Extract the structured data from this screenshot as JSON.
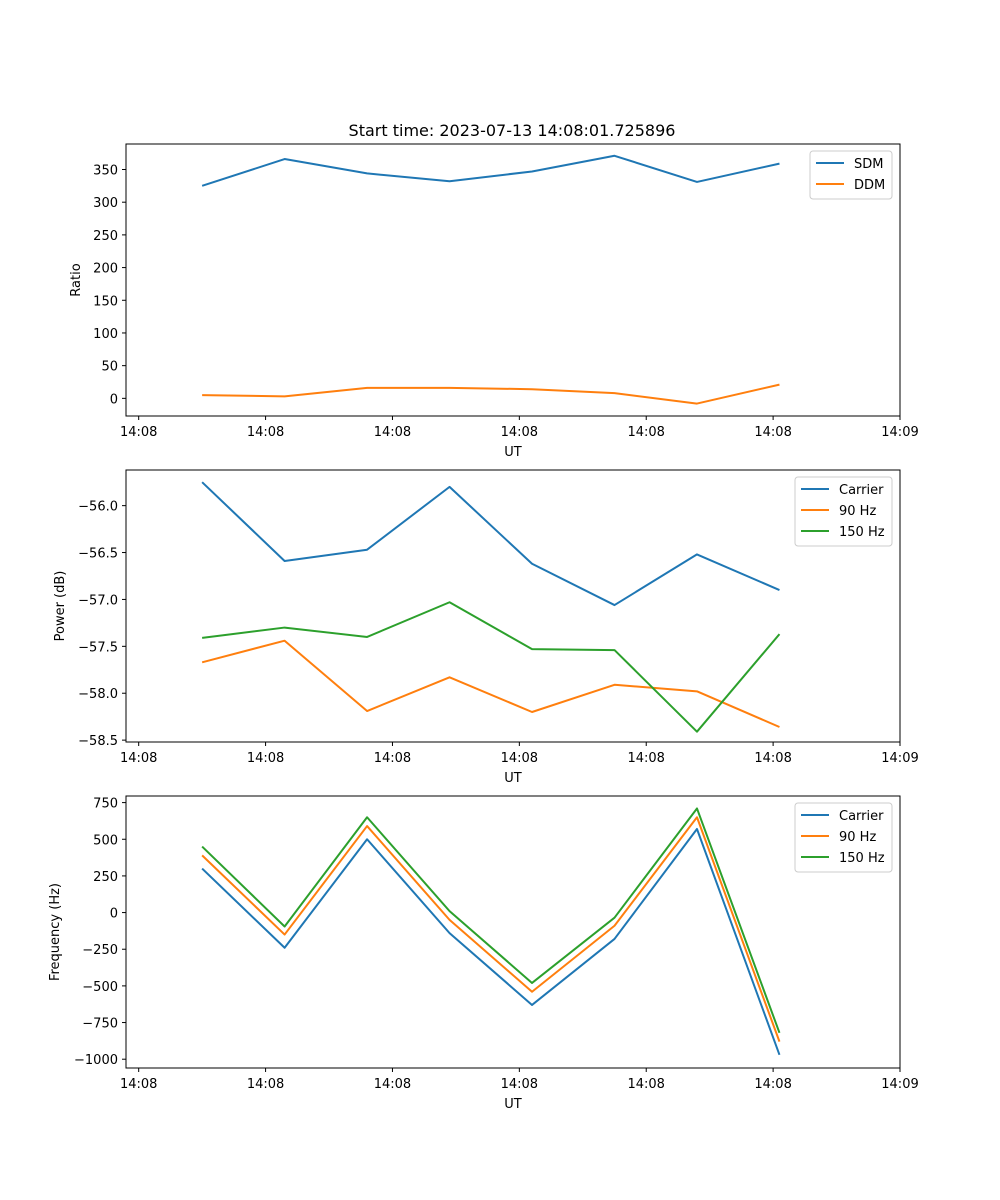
{
  "figure_title": "Start time: 2023-07-13 14:08:01.725896",
  "x_tick_labels": [
    "14:08",
    "14:08",
    "14:08",
    "14:08",
    "14:08",
    "14:08",
    "14:09"
  ],
  "chart_data": [
    {
      "type": "line",
      "title": "Start time: 2023-07-13 14:08:01.725896",
      "xlabel": "UT",
      "ylabel": "Ratio",
      "x": [
        0.5,
        1.15,
        1.8,
        2.45,
        3.1,
        3.75,
        4.4,
        5.05
      ],
      "xlim": [
        -0.1,
        6.0
      ],
      "x_ticks": [
        0,
        1,
        2,
        3,
        4,
        5,
        6
      ],
      "ylim": [
        -27,
        389
      ],
      "y_ticks": [
        0,
        50,
        100,
        150,
        200,
        250,
        300,
        350
      ],
      "y_tick_labels": [
        "0",
        "50",
        "100",
        "150",
        "200",
        "250",
        "300",
        "350"
      ],
      "legend_position": "top-right",
      "series": [
        {
          "name": "SDM",
          "color": "#1f77b4",
          "values": [
            325,
            366,
            344,
            332,
            347,
            371,
            331,
            359
          ]
        },
        {
          "name": "DDM",
          "color": "#ff7f0e",
          "values": [
            5,
            3,
            16,
            16,
            14,
            8,
            -8,
            21
          ]
        }
      ]
    },
    {
      "type": "line",
      "title": "",
      "xlabel": "UT",
      "ylabel": "Power (dB)",
      "x": [
        0.5,
        1.15,
        1.8,
        2.45,
        3.1,
        3.75,
        4.4,
        5.05
      ],
      "xlim": [
        -0.1,
        6.0
      ],
      "x_ticks": [
        0,
        1,
        2,
        3,
        4,
        5,
        6
      ],
      "ylim": [
        -58.52,
        -55.62
      ],
      "y_ticks": [
        -56.0,
        -56.5,
        -57.0,
        -57.5,
        -58.0,
        -58.5
      ],
      "y_tick_labels": [
        "−56.0",
        "−56.5",
        "−57.0",
        "−57.5",
        "−58.0",
        "−58.5"
      ],
      "legend_position": "top-right",
      "series": [
        {
          "name": "Carrier",
          "color": "#1f77b4",
          "values": [
            -55.75,
            -56.59,
            -56.47,
            -55.8,
            -56.62,
            -57.06,
            -56.52,
            -56.9
          ]
        },
        {
          "name": "90 Hz",
          "color": "#ff7f0e",
          "values": [
            -57.67,
            -57.44,
            -58.19,
            -57.83,
            -58.2,
            -57.91,
            -57.98,
            -58.36
          ]
        },
        {
          "name": "150 Hz",
          "color": "#2ca02c",
          "values": [
            -57.41,
            -57.3,
            -57.4,
            -57.03,
            -57.53,
            -57.54,
            -58.41,
            -57.37
          ]
        }
      ]
    },
    {
      "type": "line",
      "title": "",
      "xlabel": "UT",
      "ylabel": "Frequency (Hz)",
      "x": [
        0.5,
        1.15,
        1.8,
        2.45,
        3.1,
        3.75,
        4.4,
        5.05
      ],
      "xlim": [
        -0.1,
        6.0
      ],
      "x_ticks": [
        0,
        1,
        2,
        3,
        4,
        5,
        6
      ],
      "ylim": [
        -1060,
        795
      ],
      "y_ticks": [
        750,
        500,
        250,
        0,
        -250,
        -500,
        -750,
        -1000
      ],
      "y_tick_labels": [
        "750",
        "500",
        "250",
        "0",
        "−250",
        "−500",
        "−750",
        "−1000"
      ],
      "legend_position": "top-right",
      "series": [
        {
          "name": "Carrier",
          "color": "#1f77b4",
          "values": [
            300,
            -240,
            500,
            -140,
            -630,
            -180,
            570,
            -970
          ]
        },
        {
          "name": "90 Hz",
          "color": "#ff7f0e",
          "values": [
            390,
            -150,
            590,
            -50,
            -540,
            -90,
            650,
            -880
          ]
        },
        {
          "name": "150 Hz",
          "color": "#2ca02c",
          "values": [
            450,
            -95,
            650,
            10,
            -480,
            -35,
            710,
            -820
          ]
        }
      ]
    }
  ]
}
